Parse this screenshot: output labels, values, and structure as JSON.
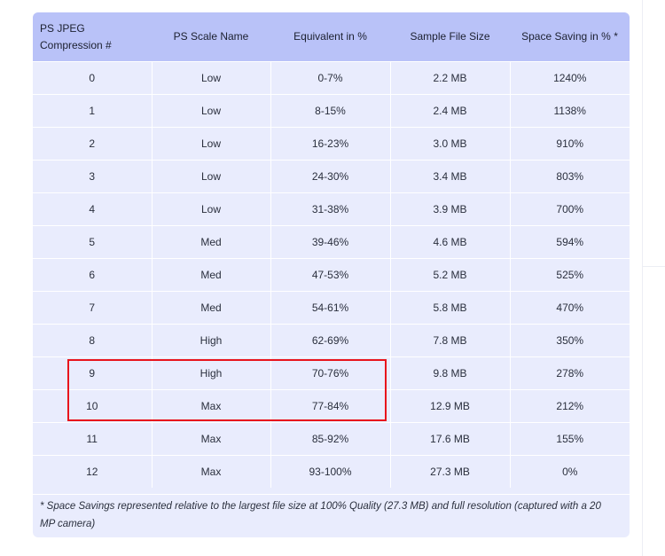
{
  "table": {
    "headers": [
      "PS JPEG Compression #",
      "PS Scale Name",
      "Equivalent in %",
      "Sample File Size",
      "Space Saving in % *"
    ],
    "rows": [
      [
        "0",
        "Low",
        "0-7%",
        "2.2 MB",
        "1240%"
      ],
      [
        "1",
        "Low",
        "8-15%",
        "2.4 MB",
        "1138%"
      ],
      [
        "2",
        "Low",
        "16-23%",
        "3.0 MB",
        "910%"
      ],
      [
        "3",
        "Low",
        "24-30%",
        "3.4 MB",
        "803%"
      ],
      [
        "4",
        "Low",
        "31-38%",
        "3.9 MB",
        "700%"
      ],
      [
        "5",
        "Med",
        "39-46%",
        "4.6 MB",
        "594%"
      ],
      [
        "6",
        "Med",
        "47-53%",
        "5.2 MB",
        "525%"
      ],
      [
        "7",
        "Med",
        "54-61%",
        "5.8 MB",
        "470%"
      ],
      [
        "8",
        "High",
        "62-69%",
        "7.8 MB",
        "350%"
      ],
      [
        "9",
        "High",
        "70-76%",
        "9.8 MB",
        "278%"
      ],
      [
        "10",
        "Max",
        "77-84%",
        "12.9 MB",
        "212%"
      ],
      [
        "11",
        "Max",
        "85-92%",
        "17.6 MB",
        "155%"
      ],
      [
        "12",
        "Max",
        "93-100%",
        "27.3 MB",
        "0%"
      ]
    ],
    "footnote": "* Space Savings represented relative to the largest file size at 100% Quality (27.3 MB) and full resolution (captured with a 20 MP camera)"
  },
  "highlight": {
    "rows": [
      9,
      10
    ],
    "color": "#e8141c"
  },
  "colors": {
    "header_bg": "#b9c2f8",
    "row_bg": "#e9ecfd",
    "cell_border": "#ffffff"
  }
}
